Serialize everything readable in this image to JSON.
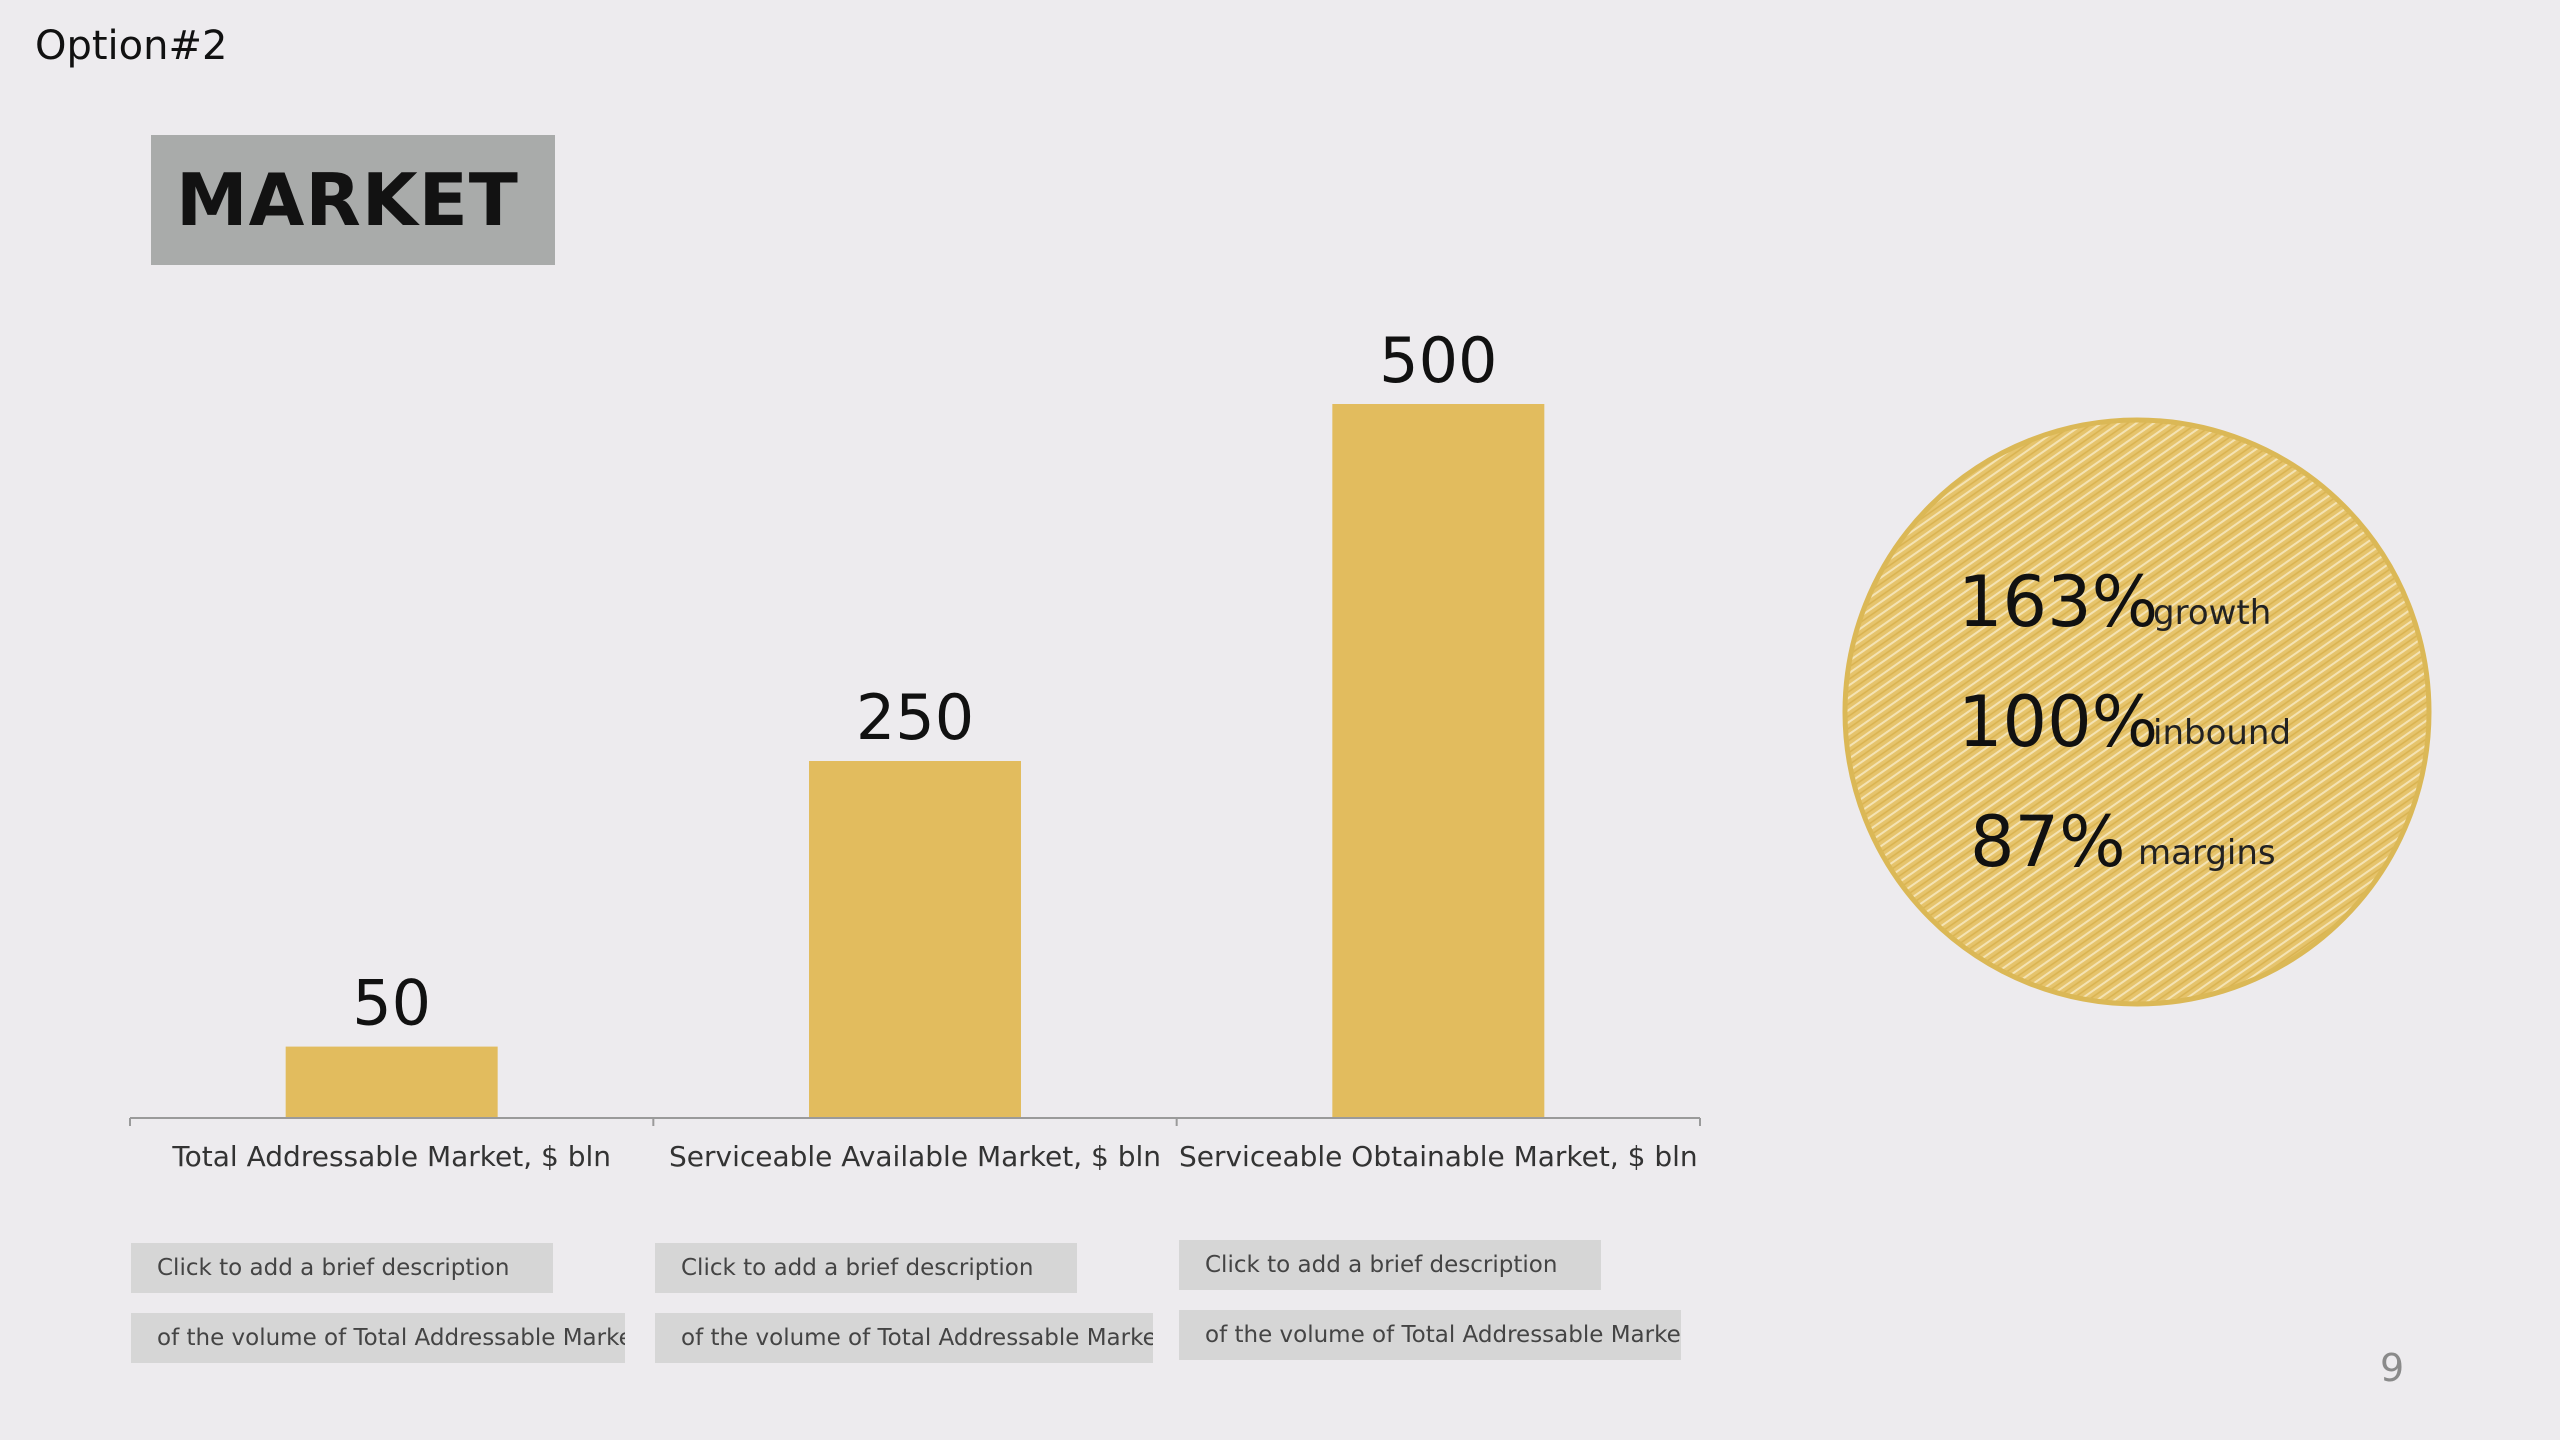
{
  "header": {
    "option_label": "Option#2",
    "title": "MARKET"
  },
  "colors": {
    "background": "#edebee",
    "bar": "#e2bc5e",
    "title_box": "#a9abaa",
    "circle_stroke": "#dbb856",
    "desc_box": "#d6d6d6"
  },
  "chart_data": {
    "type": "bar",
    "categories": [
      "Total Addressable Market, $ bln",
      "Serviceable Available Market, $ bln",
      "Serviceable Obtainable Market, $ bln"
    ],
    "values": [
      50,
      250,
      500
    ],
    "data_labels": [
      "50",
      "250",
      "500"
    ],
    "title": "",
    "xlabel": "",
    "ylabel": "",
    "ylim": [
      0,
      500
    ],
    "grid": false,
    "legend": "none"
  },
  "descriptions": [
    {
      "line1": "Click to add a brief description",
      "line2": "of the volume of Total Addressable Market"
    },
    {
      "line1": "Click to add a brief description",
      "line2": "of the volume of Total Addressable Market"
    },
    {
      "line1": "Click to add a brief description",
      "line2": "of the volume of Total Addressable Market"
    }
  ],
  "stats": [
    {
      "value": "163%",
      "label": "growth"
    },
    {
      "value": "100%",
      "label": "inbound"
    },
    {
      "value": "87%",
      "label": "margins"
    }
  ],
  "footer": {
    "page_number": "9"
  }
}
